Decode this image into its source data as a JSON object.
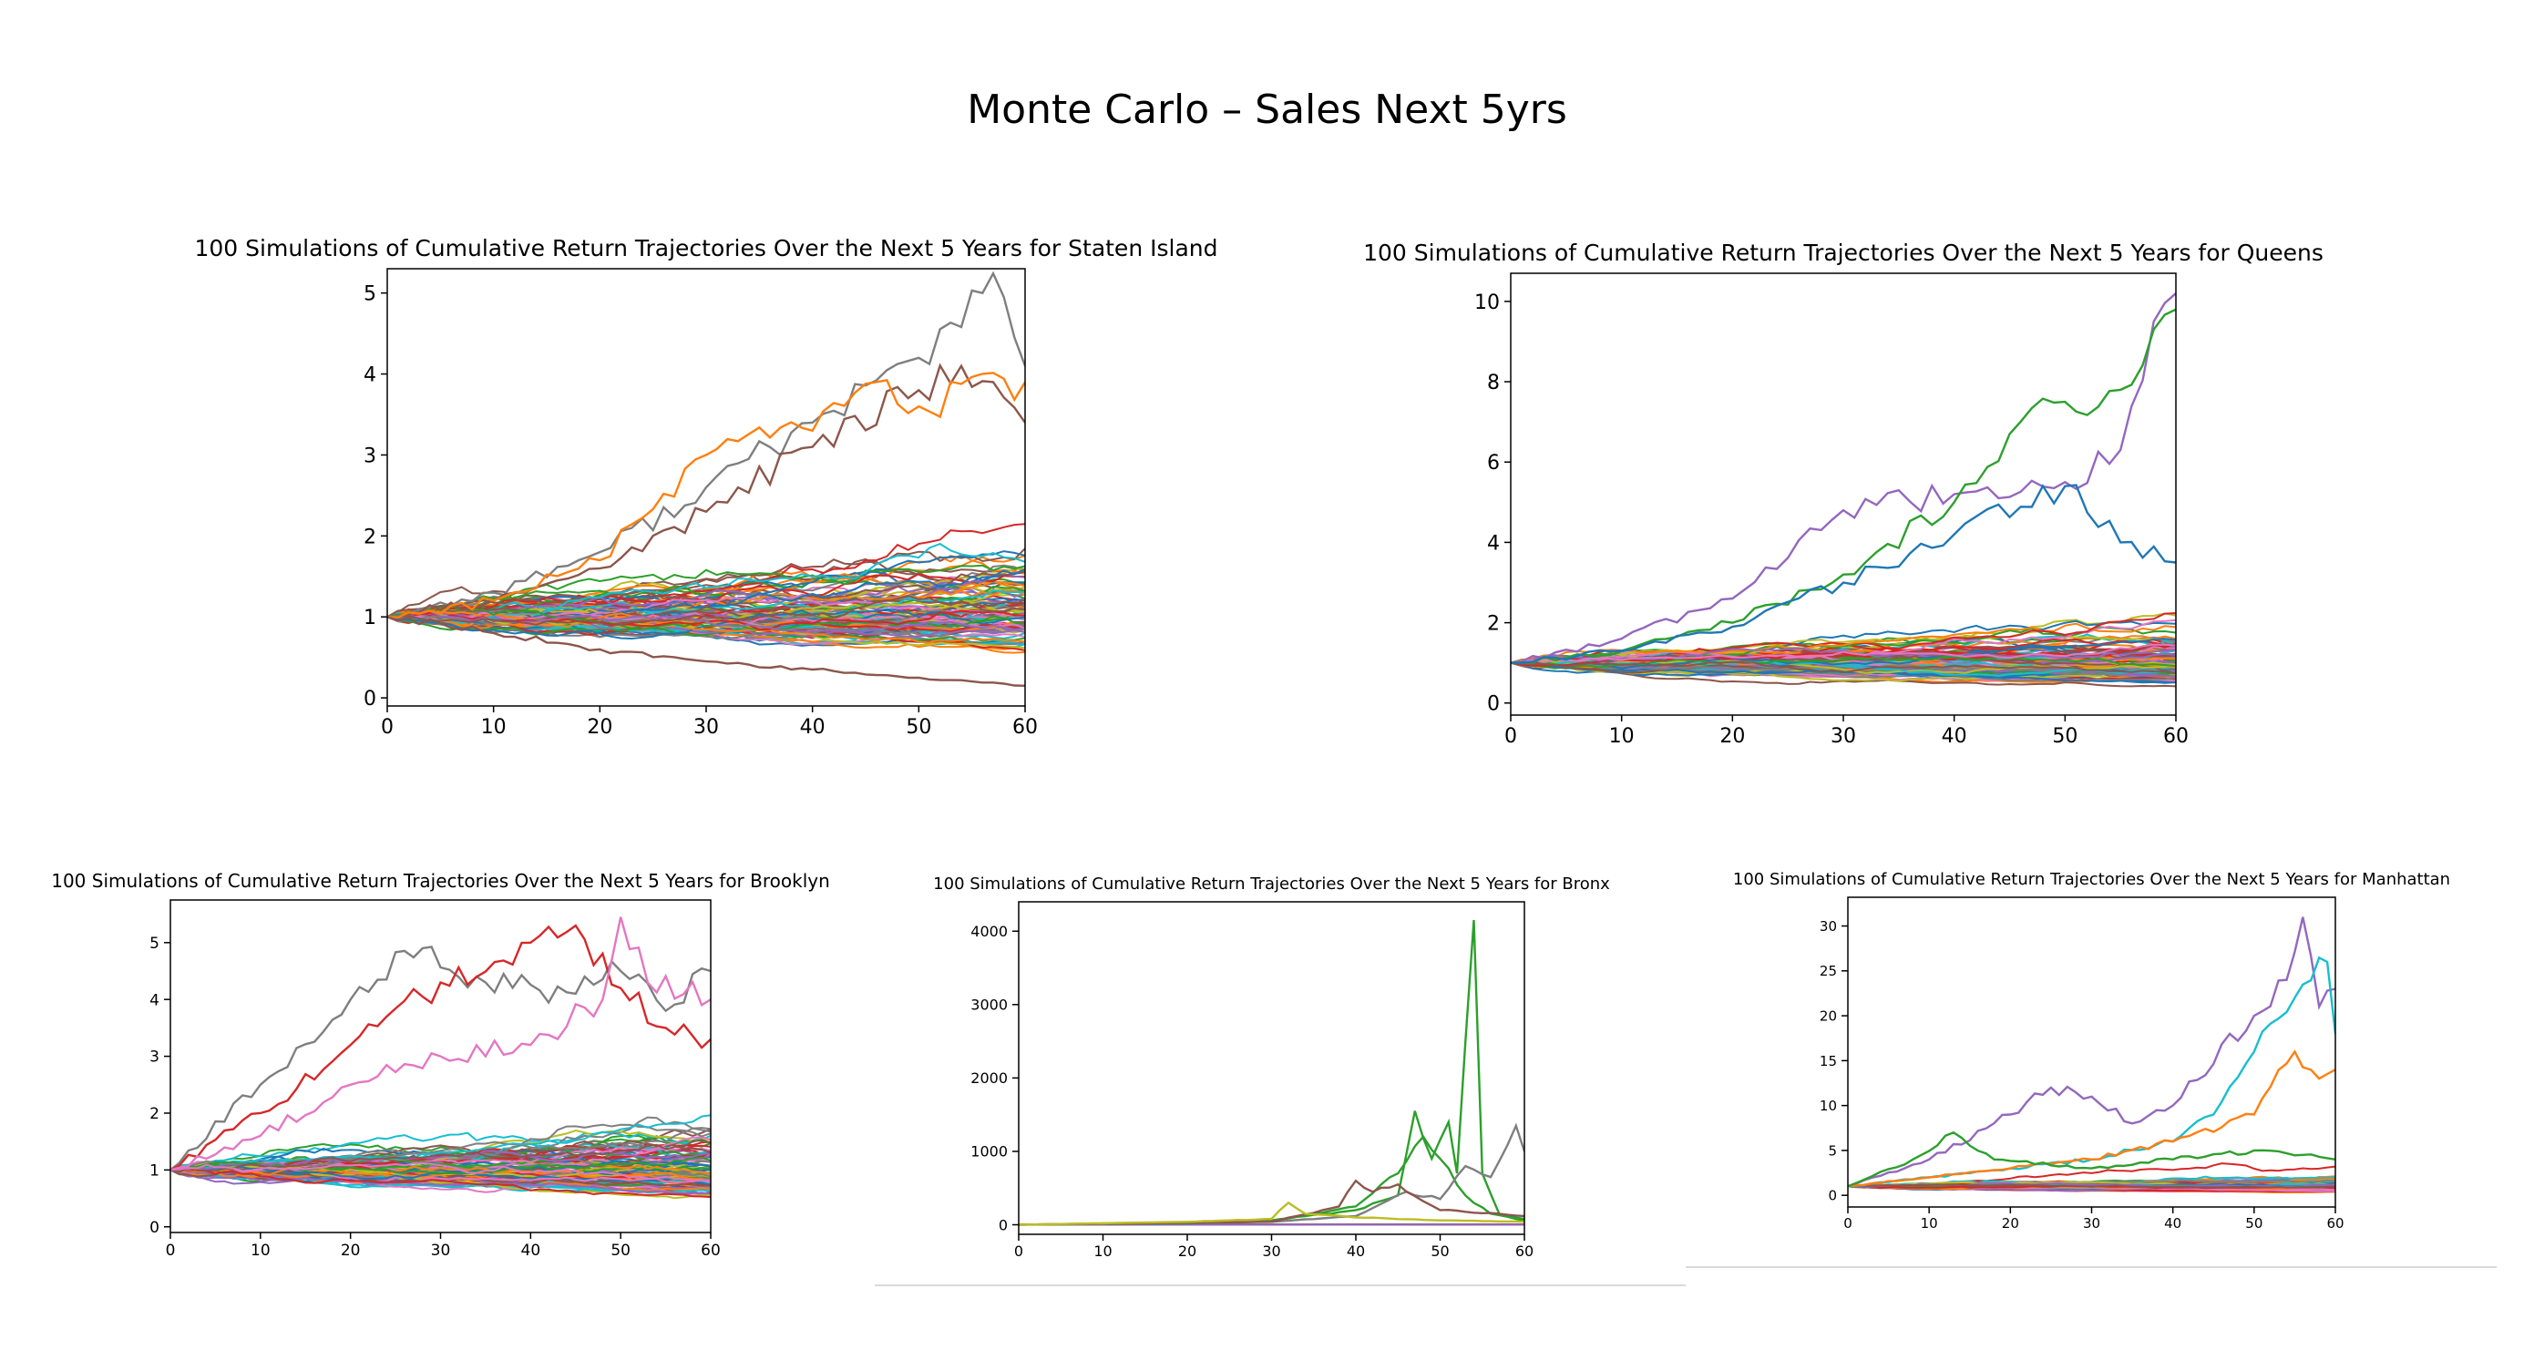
{
  "slide": {
    "title": "Monte Carlo – Sales Next 5yrs"
  },
  "palette": [
    "#1f77b4",
    "#ff7f0e",
    "#2ca02c",
    "#d62728",
    "#9467bd",
    "#8c564b",
    "#e377c2",
    "#7f7f7f",
    "#bcbd22",
    "#17becf"
  ],
  "chart_data": [
    {
      "type": "line",
      "title": "100 Simulations of Cumulative Return Trajectories Over the Next 5 Years for Staten Island",
      "xlabel": "",
      "ylabel": "",
      "xlim": [
        0,
        60
      ],
      "ylim": [
        -0.1,
        5.3
      ],
      "xticks": [
        0,
        10,
        20,
        30,
        40,
        50,
        60
      ],
      "yticks": [
        0,
        1,
        2,
        3,
        4,
        5
      ],
      "num_series": 100,
      "start": 1.0,
      "legend": "none",
      "grid": false,
      "highlight_series": [
        {
          "color": "#7f7f7f",
          "points": [
            [
              0,
              1.0
            ],
            [
              10,
              1.3
            ],
            [
              20,
              1.8
            ],
            [
              30,
              2.6
            ],
            [
              40,
              3.4
            ],
            [
              50,
              4.2
            ],
            [
              56,
              5.0
            ],
            [
              58,
              4.95
            ],
            [
              60,
              4.1
            ]
          ]
        },
        {
          "color": "#8c564b",
          "points": [
            [
              0,
              1.0
            ],
            [
              10,
              1.2
            ],
            [
              20,
              1.6
            ],
            [
              30,
              2.3
            ],
            [
              40,
              3.1
            ],
            [
              50,
              3.8
            ],
            [
              54,
              4.1
            ],
            [
              57,
              3.9
            ],
            [
              60,
              3.4
            ]
          ]
        },
        {
          "color": "#ff7f0e",
          "points": [
            [
              0,
              1.0
            ],
            [
              10,
              1.2
            ],
            [
              20,
              1.7
            ],
            [
              30,
              3.0
            ],
            [
              40,
              3.3
            ],
            [
              46,
              3.9
            ],
            [
              50,
              3.6
            ],
            [
              60,
              3.9
            ]
          ]
        },
        {
          "color": "#8c564b",
          "points": [
            [
              0,
              1.0
            ],
            [
              10,
              0.8
            ],
            [
              20,
              0.6
            ],
            [
              30,
              0.45
            ],
            [
              40,
              0.35
            ],
            [
              50,
              0.25
            ],
            [
              60,
              0.15
            ]
          ]
        }
      ]
    },
    {
      "type": "line",
      "title": "100 Simulations of Cumulative Return Trajectories Over the Next 5 Years for Queens",
      "xlabel": "",
      "ylabel": "",
      "xlim": [
        0,
        60
      ],
      "ylim": [
        -0.3,
        10.7
      ],
      "xticks": [
        0,
        10,
        20,
        30,
        40,
        50,
        60
      ],
      "yticks": [
        0,
        2,
        4,
        6,
        8,
        10
      ],
      "num_series": 100,
      "start": 1.0,
      "legend": "none",
      "grid": false,
      "highlight_series": [
        {
          "color": "#9467bd",
          "points": [
            [
              0,
              1.0
            ],
            [
              10,
              1.6
            ],
            [
              20,
              2.6
            ],
            [
              30,
              4.8
            ],
            [
              40,
              5.2
            ],
            [
              50,
              5.5
            ],
            [
              55,
              6.3
            ],
            [
              58,
              9.5
            ],
            [
              60,
              10.2
            ]
          ]
        },
        {
          "color": "#2ca02c",
          "points": [
            [
              0,
              1.0
            ],
            [
              10,
              1.3
            ],
            [
              20,
              2.0
            ],
            [
              30,
              3.2
            ],
            [
              40,
              5.0
            ],
            [
              45,
              6.7
            ],
            [
              50,
              7.5
            ],
            [
              55,
              7.8
            ],
            [
              58,
              9.3
            ],
            [
              60,
              9.8
            ]
          ]
        },
        {
          "color": "#1f77b4",
          "points": [
            [
              0,
              1.0
            ],
            [
              10,
              1.3
            ],
            [
              20,
              1.9
            ],
            [
              30,
              3.0
            ],
            [
              40,
              4.2
            ],
            [
              50,
              5.4
            ],
            [
              55,
              4.0
            ],
            [
              60,
              3.5
            ]
          ]
        }
      ]
    },
    {
      "type": "line",
      "title": "100 Simulations of Cumulative Return Trajectories Over the Next 5 Years for Brooklyn",
      "xlabel": "",
      "ylabel": "",
      "xlim": [
        0,
        60
      ],
      "ylim": [
        -0.1,
        5.75
      ],
      "xticks": [
        0,
        10,
        20,
        30,
        40,
        50,
        60
      ],
      "yticks": [
        0,
        1,
        2,
        3,
        4,
        5
      ],
      "num_series": 100,
      "start": 1.0,
      "legend": "none",
      "grid": false,
      "highlight_series": [
        {
          "color": "#7f7f7f",
          "points": [
            [
              0,
              1.0
            ],
            [
              10,
              2.5
            ],
            [
              20,
              4.0
            ],
            [
              28,
              4.9
            ],
            [
              35,
              4.3
            ],
            [
              45,
              4.1
            ],
            [
              50,
              4.5
            ],
            [
              55,
              3.8
            ],
            [
              60,
              4.5
            ]
          ]
        },
        {
          "color": "#d62728",
          "points": [
            [
              0,
              1.0
            ],
            [
              10,
              2.0
            ],
            [
              20,
              3.2
            ],
            [
              30,
              4.3
            ],
            [
              40,
              5.0
            ],
            [
              45,
              5.3
            ],
            [
              50,
              4.2
            ],
            [
              55,
              3.5
            ],
            [
              60,
              3.3
            ]
          ]
        },
        {
          "color": "#e377c2",
          "points": [
            [
              0,
              1.0
            ],
            [
              10,
              1.6
            ],
            [
              20,
              2.5
            ],
            [
              30,
              3.0
            ],
            [
              40,
              3.2
            ],
            [
              48,
              4.0
            ],
            [
              50,
              5.45
            ],
            [
              53,
              4.3
            ],
            [
              60,
              4.0
            ]
          ]
        }
      ]
    },
    {
      "type": "line",
      "title": "100 Simulations of Cumulative Return Trajectories Over the Next 5 Years for Bronx",
      "xlabel": "",
      "ylabel": "",
      "xlim": [
        0,
        60
      ],
      "ylim": [
        -130,
        4400
      ],
      "xticks": [
        0,
        10,
        20,
        30,
        40,
        50,
        60
      ],
      "yticks": [
        0,
        1000,
        2000,
        3000,
        4000
      ],
      "num_series": 100,
      "start": 1.0,
      "legend": "none",
      "grid": false,
      "highlight_series": [
        {
          "color": "#2ca02c",
          "points": [
            [
              0,
              1
            ],
            [
              20,
              20
            ],
            [
              30,
              60
            ],
            [
              40,
              200
            ],
            [
              45,
              400
            ],
            [
              47,
              1550
            ],
            [
              49,
              900
            ],
            [
              51,
              1400
            ],
            [
              52,
              700
            ],
            [
              53,
              2500
            ],
            [
              54,
              4150
            ],
            [
              55,
              700
            ],
            [
              57,
              150
            ],
            [
              60,
              80
            ]
          ]
        },
        {
          "color": "#2ca02c",
          "points": [
            [
              0,
              1
            ],
            [
              30,
              50
            ],
            [
              40,
              250
            ],
            [
              45,
              700
            ],
            [
              48,
              1200
            ],
            [
              50,
              900
            ],
            [
              53,
              400
            ],
            [
              56,
              150
            ],
            [
              60,
              60
            ]
          ]
        },
        {
          "color": "#7f7f7f",
          "points": [
            [
              0,
              1
            ],
            [
              30,
              40
            ],
            [
              40,
              120
            ],
            [
              46,
              450
            ],
            [
              50,
              350
            ],
            [
              53,
              800
            ],
            [
              56,
              650
            ],
            [
              59,
              1350
            ],
            [
              60,
              1000
            ]
          ]
        },
        {
          "color": "#8c564b",
          "points": [
            [
              0,
              1
            ],
            [
              30,
              40
            ],
            [
              38,
              250
            ],
            [
              40,
              600
            ],
            [
              42,
              450
            ],
            [
              45,
              550
            ],
            [
              50,
              200
            ],
            [
              60,
              120
            ]
          ]
        },
        {
          "color": "#bcbd22",
          "points": [
            [
              0,
              1
            ],
            [
              20,
              40
            ],
            [
              30,
              80
            ],
            [
              32,
              300
            ],
            [
              34,
              150
            ],
            [
              40,
              100
            ],
            [
              50,
              60
            ],
            [
              60,
              40
            ]
          ]
        }
      ]
    },
    {
      "type": "line",
      "title": "100 Simulations of Cumulative Return Trajectories Over the Next 5 Years for Manhattan",
      "xlabel": "",
      "ylabel": "",
      "xlim": [
        0,
        60
      ],
      "ylim": [
        -1.3,
        33.2
      ],
      "xticks": [
        0,
        10,
        20,
        30,
        40,
        50,
        60
      ],
      "yticks": [
        0,
        5,
        10,
        15,
        20,
        25,
        30
      ],
      "num_series": 100,
      "start": 1.0,
      "legend": "none",
      "grid": false,
      "highlight_series": [
        {
          "color": "#9467bd",
          "points": [
            [
              0,
              1
            ],
            [
              10,
              4
            ],
            [
              20,
              9
            ],
            [
              25,
              12
            ],
            [
              30,
              11
            ],
            [
              35,
              8
            ],
            [
              40,
              10
            ],
            [
              50,
              20
            ],
            [
              54,
              24
            ],
            [
              56,
              31
            ],
            [
              58,
              21
            ],
            [
              60,
              23
            ]
          ]
        },
        {
          "color": "#17becf",
          "points": [
            [
              0,
              1
            ],
            [
              10,
              2
            ],
            [
              20,
              3
            ],
            [
              30,
              4
            ],
            [
              40,
              6
            ],
            [
              45,
              9
            ],
            [
              50,
              16
            ],
            [
              55,
              22
            ],
            [
              59,
              26
            ],
            [
              60,
              18
            ]
          ]
        },
        {
          "color": "#ff7f0e",
          "points": [
            [
              0,
              1
            ],
            [
              10,
              2
            ],
            [
              20,
              3
            ],
            [
              30,
              4
            ],
            [
              40,
              6
            ],
            [
              50,
              9
            ],
            [
              55,
              16
            ],
            [
              58,
              13
            ],
            [
              60,
              14
            ]
          ]
        },
        {
          "color": "#2ca02c",
          "points": [
            [
              0,
              1
            ],
            [
              8,
              4
            ],
            [
              13,
              7
            ],
            [
              18,
              4
            ],
            [
              30,
              3
            ],
            [
              40,
              4
            ],
            [
              50,
              5
            ],
            [
              60,
              4
            ]
          ]
        }
      ]
    }
  ]
}
